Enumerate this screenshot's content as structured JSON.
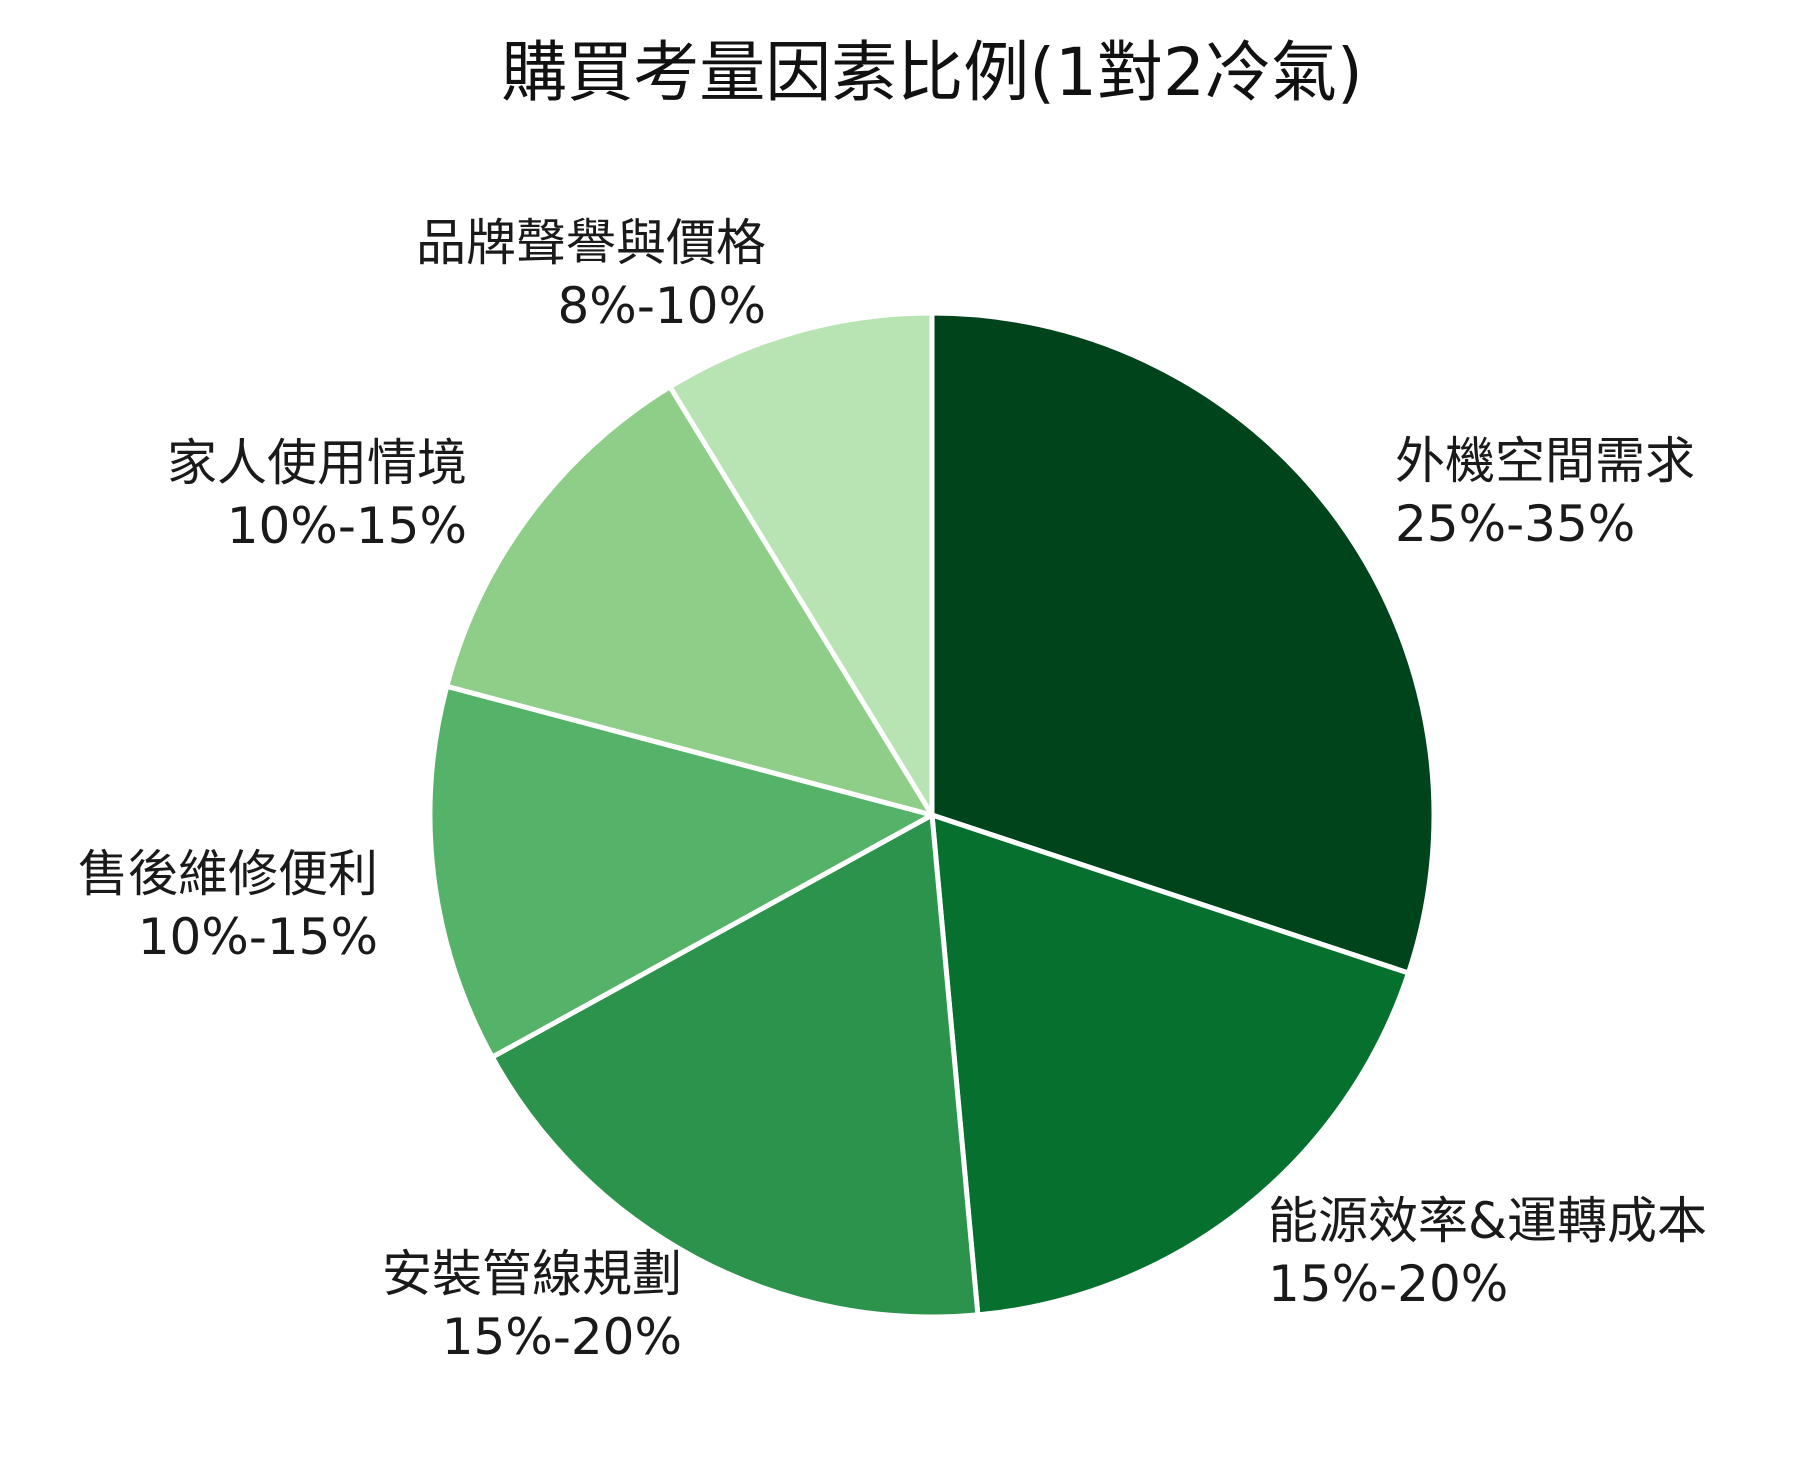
{
  "chart_data": {
    "type": "pie",
    "title": "購買考量因素比例(1對2冷氣)",
    "start_angle_deg": 0,
    "direction": "clockwise",
    "slices": [
      {
        "label": "外機空間需求",
        "range_text": "25%-35%",
        "value": 31,
        "color": "#00441b"
      },
      {
        "label": "能源效率&運轉成本",
        "range_text": "15%-20%",
        "value": 19,
        "color": "#06712f"
      },
      {
        "label": "安裝管線規劃",
        "range_text": "15%-20%",
        "value": 19,
        "color": "#2c934c"
      },
      {
        "label": "售後維修便利",
        "range_text": "10%-15%",
        "value": 12.5,
        "color": "#54b269"
      },
      {
        "label": "家人使用情境",
        "range_text": "10%-15%",
        "value": 12.5,
        "color": "#8ece88"
      },
      {
        "label": "品牌聲譽與價格",
        "range_text": "8%-10%",
        "value": 9,
        "color": "#b8e3b2"
      }
    ],
    "legend": "none",
    "label_placement": "outside"
  }
}
